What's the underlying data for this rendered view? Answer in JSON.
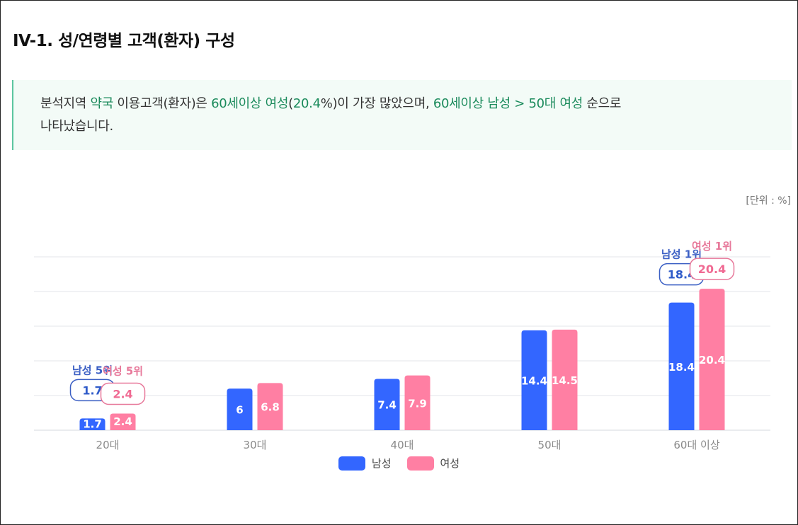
{
  "page": {
    "title": "IV-1. 성/연령별 고객(환자) 구성",
    "unit": "[단위 : %]"
  },
  "summary": {
    "segments": [
      {
        "text": "분석지역 ",
        "hl": false
      },
      {
        "text": "약국",
        "hl": true
      },
      {
        "text": " 이용고객(환자)은 ",
        "hl": false
      },
      {
        "text": "60세이상 여성",
        "hl": true
      },
      {
        "text": "(",
        "hl": false
      },
      {
        "text": "20.4",
        "hl": true
      },
      {
        "text": "%)이 가장 많았으며, ",
        "hl": false
      },
      {
        "text": "60세이상 남성 > 50대 여성",
        "hl": true
      },
      {
        "text": " 순으로",
        "hl": false
      },
      {
        "text": "BR",
        "hl": false
      },
      {
        "text": "나타났습니다.",
        "hl": false
      }
    ],
    "colors": {
      "highlight": "#1a8a5b"
    }
  },
  "chart_data": {
    "type": "bar",
    "categories": [
      "20대",
      "30대",
      "40대",
      "50대",
      "60대 이상"
    ],
    "series": [
      {
        "name": "남성",
        "color": "#3366ff",
        "values": [
          1.7,
          6,
          7.4,
          14.4,
          18.4
        ]
      },
      {
        "name": "여성",
        "color": "#ff7fa3",
        "values": [
          2.4,
          6.8,
          7.9,
          14.5,
          20.4
        ]
      }
    ],
    "ylim": [
      0,
      25
    ],
    "grid": true,
    "legend": "bottom",
    "annotations": [
      {
        "series": 0,
        "category": 0,
        "label": "남성 5위",
        "value": "1.7"
      },
      {
        "series": 1,
        "category": 0,
        "label": "여성 5위",
        "value": "2.4"
      },
      {
        "series": 0,
        "category": 4,
        "label": "남성 1위",
        "value": "18.4"
      },
      {
        "series": 1,
        "category": 4,
        "label": "여성 1위",
        "value": "20.4"
      }
    ]
  }
}
